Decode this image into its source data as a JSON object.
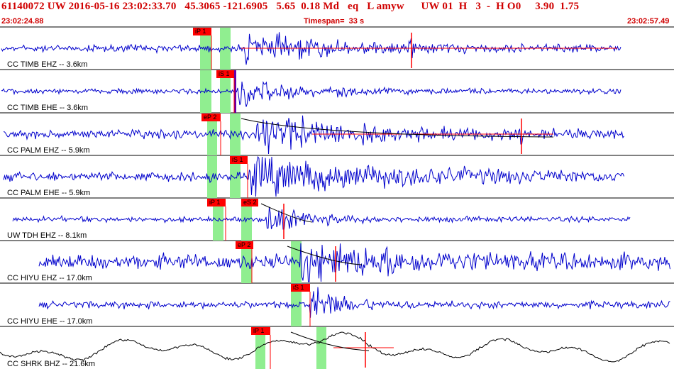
{
  "header": {
    "event_line": "61140072 UW 2016-05-16 23:02:33.70   45.3065 -121.6905   5.65  0.18 Md   eq   L amyw      UW 01  H   3  -  H O0     3.90  1.75",
    "start_time": "23:02:24.88",
    "timespan": "Timespan=  33 s",
    "end_time": "23:02:57.49"
  },
  "colors": {
    "header_text": "#d00000",
    "trace_blue": "#0000cc",
    "trace_black": "#000000",
    "pick_red": "#ff0000",
    "window_green": "#90ee90",
    "coda_line": "#000000"
  },
  "traces": [
    {
      "label": "CC TIMB EHZ -- 3.6km",
      "color": "blue",
      "picks": [
        "iP 1"
      ]
    },
    {
      "label": "CC TIMB EHE -- 3.6km",
      "color": "blue",
      "picks": [
        "iS 1"
      ]
    },
    {
      "label": "CC PALM EHZ -- 5.9km",
      "color": "blue",
      "picks": [
        "eP 2"
      ]
    },
    {
      "label": "CC PALM EHE -- 5.9km",
      "color": "blue",
      "picks": [
        "iS 1"
      ]
    },
    {
      "label": "UW TDH EHZ -- 8.1km",
      "color": "blue",
      "picks": [
        "iP 1",
        "eS 2"
      ]
    },
    {
      "label": "CC HIYU EHZ -- 17.0km",
      "color": "blue",
      "picks": [
        "eP 2"
      ]
    },
    {
      "label": "CC HIYU EHE -- 17.0km",
      "color": "blue",
      "picks": [
        "iS 1"
      ]
    },
    {
      "label": "CC SHRK BHZ -- 21.6km",
      "color": "black",
      "picks": [
        "iP 1"
      ]
    }
  ]
}
